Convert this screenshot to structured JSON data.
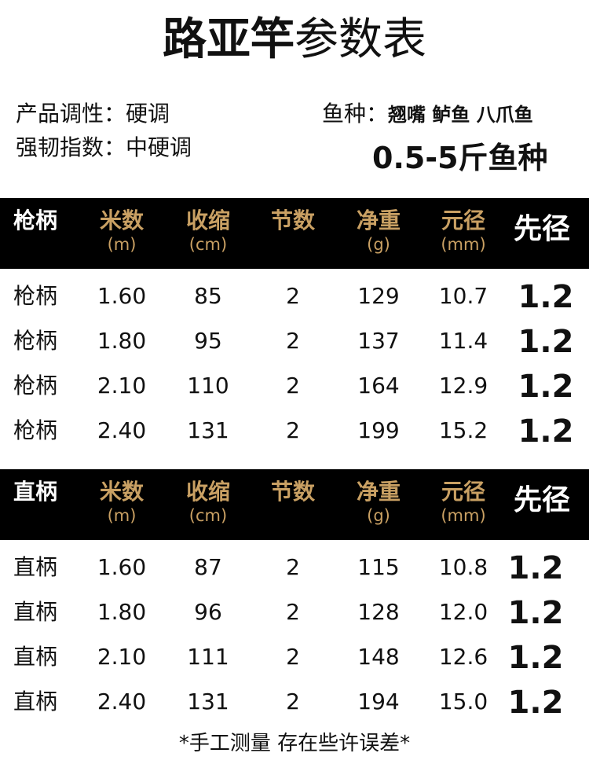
{
  "title": {
    "bold": "路亚竿",
    "normal": "参数表"
  },
  "info": {
    "action": "产品调性：硬调",
    "toughness": "强韧指数：中硬调",
    "species_label": "鱼种：",
    "species": "翘嘴 鲈鱼 八爪鱼",
    "weight_range": "0.5-5斤鱼种"
  },
  "colors": {
    "header_bg": "#000000",
    "header_gold": "#c9a063"
  },
  "tables": [
    {
      "columns": [
        {
          "name": "枪柄",
          "unit": ""
        },
        {
          "name": "米数",
          "unit": "(m)"
        },
        {
          "name": "收缩",
          "unit": "(cm)"
        },
        {
          "name": "节数",
          "unit": ""
        },
        {
          "name": "净重",
          "unit": "(g)"
        },
        {
          "name": "元径",
          "unit": "(mm)"
        },
        {
          "name": "先径",
          "unit": ""
        }
      ],
      "rows": [
        [
          "枪柄",
          "1.60",
          "85",
          "2",
          "129",
          "10.7",
          "1.2"
        ],
        [
          "枪柄",
          "1.80",
          "95",
          "2",
          "137",
          "11.4",
          "1.2"
        ],
        [
          "枪柄",
          "2.10",
          "110",
          "2",
          "164",
          "12.9",
          "1.2"
        ],
        [
          "枪柄",
          "2.40",
          "131",
          "2",
          "199",
          "15.2",
          "1.2"
        ]
      ]
    },
    {
      "columns": [
        {
          "name": "直柄",
          "unit": ""
        },
        {
          "name": "米数",
          "unit": "(m)"
        },
        {
          "name": "收缩",
          "unit": "(cm)"
        },
        {
          "name": "节数",
          "unit": ""
        },
        {
          "name": "净重",
          "unit": "(g)"
        },
        {
          "name": "元径",
          "unit": "(mm)"
        },
        {
          "name": "先径",
          "unit": ""
        }
      ],
      "rows": [
        [
          "直柄",
          "1.60",
          "87",
          "2",
          "115",
          "10.8",
          "1.2"
        ],
        [
          "直柄",
          "1.80",
          "96",
          "2",
          "128",
          "12.0",
          "1.2"
        ],
        [
          "直柄",
          "2.10",
          "111",
          "2",
          "148",
          "12.6",
          "1.2"
        ],
        [
          "直柄",
          "2.40",
          "131",
          "2",
          "194",
          "15.0",
          "1.2"
        ]
      ]
    }
  ],
  "footer": "*手工测量 存在些许误差*"
}
